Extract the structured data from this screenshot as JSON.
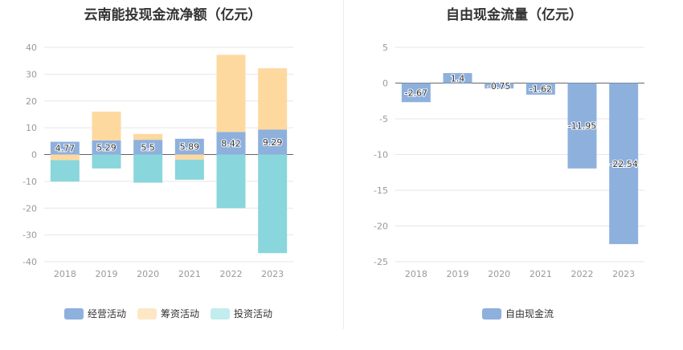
{
  "colors": {
    "operating": "#8eb0dd",
    "financing": "#fdd9a0",
    "investing": "#89d6dc",
    "free_cf": "#8eb0dd"
  },
  "chart_data": [
    {
      "type": "bar",
      "stacked": true,
      "title": "云南能投现金流净额（亿元）",
      "categories": [
        "2018",
        "2019",
        "2020",
        "2021",
        "2022",
        "2023"
      ],
      "series": [
        {
          "name": "经营活动",
          "values": [
            4.77,
            5.29,
            5.5,
            5.89,
            8.42,
            9.29
          ]
        },
        {
          "name": "筹资活动",
          "values": [
            -2.1,
            10.7,
            2.2,
            -1.9,
            28.8,
            22.9
          ]
        },
        {
          "name": "投资活动",
          "values": [
            -8.0,
            -5.2,
            -10.5,
            -7.5,
            -20.0,
            -36.8
          ]
        }
      ],
      "data_labels": [
        "4.77",
        "5.29",
        "5.5",
        "5.89",
        "8.42",
        "9.29"
      ],
      "ylim": [
        -40,
        40
      ],
      "yticks": [
        "40",
        "30",
        "20",
        "10",
        "0",
        "-10",
        "-20",
        "-30",
        "-40"
      ],
      "grid": true,
      "legend_position": "bottom"
    },
    {
      "type": "bar",
      "title": "自由现金流量（亿元）",
      "categories": [
        "2018",
        "2019",
        "2020",
        "2021",
        "2022",
        "2023"
      ],
      "series": [
        {
          "name": "自由现金流",
          "values": [
            -2.67,
            1.4,
            -0.75,
            -1.62,
            -11.95,
            -22.54
          ]
        }
      ],
      "data_labels": [
        "-2.67",
        "1.4",
        "-0.75",
        "-1.62",
        "-11.95",
        "-22.54"
      ],
      "ylim": [
        -25,
        5
      ],
      "yticks": [
        "5",
        "0",
        "-5",
        "-10",
        "-15",
        "-20",
        "-25"
      ],
      "grid": true,
      "legend_position": "bottom"
    }
  ]
}
